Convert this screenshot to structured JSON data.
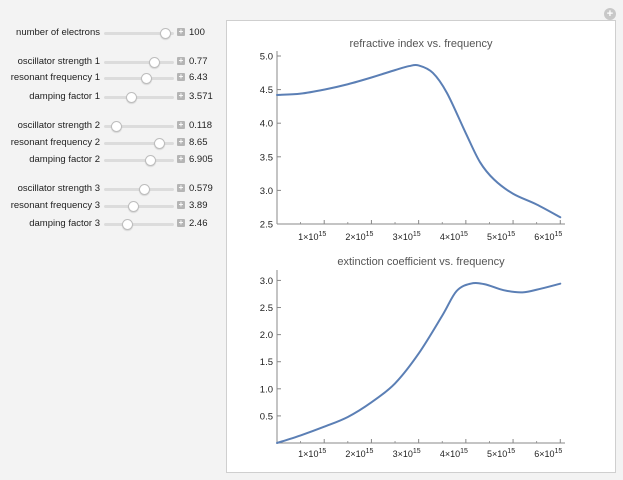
{
  "window": {
    "corner_button_label": "+"
  },
  "controls": [
    {
      "label": "number of electrons",
      "value": "100",
      "fraction": 0.9
    },
    {
      "label": "oscillator strength 1",
      "value": "0.77",
      "fraction": 0.72
    },
    {
      "label": "resonant frequency 1",
      "value": "6.43",
      "fraction": 0.6
    },
    {
      "label": "damping factor 1",
      "value": "3.571",
      "fraction": 0.36
    },
    {
      "label": "oscillator strength 2",
      "value": "0.118",
      "fraction": 0.12
    },
    {
      "label": "resonant frequency 2",
      "value": "8.65",
      "fraction": 0.8
    },
    {
      "label": "damping factor 2",
      "value": "6.905",
      "fraction": 0.66
    },
    {
      "label": "oscillator strength 3",
      "value": "0.579",
      "fraction": 0.56
    },
    {
      "label": "resonant frequency 3",
      "value": "3.89",
      "fraction": 0.39
    },
    {
      "label": "damping factor 3",
      "value": "2.46",
      "fraction": 0.29
    }
  ],
  "colors": {
    "curve": "#5b7fb5",
    "axis": "#888888",
    "plot_background": "#ffffff",
    "panel_background": "#f3f3f3"
  },
  "chart_data": [
    {
      "type": "line",
      "title": "refractive index vs. frequency",
      "xlabel": "",
      "ylabel": "",
      "x_tick_labels": [
        {
          "mant": "1×10",
          "exp": "15",
          "x": 1000000000000000.0
        },
        {
          "mant": "2×10",
          "exp": "15",
          "x": 2000000000000000.0
        },
        {
          "mant": "3×10",
          "exp": "15",
          "x": 3000000000000000.0
        },
        {
          "mant": "4×10",
          "exp": "15",
          "x": 4000000000000000.0
        },
        {
          "mant": "5×10",
          "exp": "15",
          "x": 5000000000000000.0
        },
        {
          "mant": "6×10",
          "exp": "15",
          "x": 6000000000000000.0
        }
      ],
      "y_tick_labels": [
        "2.5",
        "3.0",
        "3.5",
        "4.0",
        "4.5",
        "5.0"
      ],
      "xlim": [
        0,
        6100000000000000.0
      ],
      "ylim": [
        2.5,
        5.0
      ],
      "x": [
        0,
        500000000000000.0,
        1000000000000000.0,
        1500000000000000.0,
        2000000000000000.0,
        2500000000000000.0,
        2800000000000000.0,
        3000000000000000.0,
        3300000000000000.0,
        3600000000000000.0,
        4000000000000000.0,
        4300000000000000.0,
        4600000000000000.0,
        5000000000000000.0,
        5500000000000000.0,
        6000000000000000.0
      ],
      "y": [
        4.42,
        4.44,
        4.5,
        4.58,
        4.68,
        4.79,
        4.85,
        4.86,
        4.75,
        4.45,
        3.85,
        3.42,
        3.16,
        2.95,
        2.79,
        2.6
      ]
    },
    {
      "type": "line",
      "title": "extinction coefficient vs. frequency",
      "xlabel": "",
      "ylabel": "",
      "x_tick_labels": [
        {
          "mant": "1×10",
          "exp": "15",
          "x": 1000000000000000.0
        },
        {
          "mant": "2×10",
          "exp": "15",
          "x": 2000000000000000.0
        },
        {
          "mant": "3×10",
          "exp": "15",
          "x": 3000000000000000.0
        },
        {
          "mant": "4×10",
          "exp": "15",
          "x": 4000000000000000.0
        },
        {
          "mant": "5×10",
          "exp": "15",
          "x": 5000000000000000.0
        },
        {
          "mant": "6×10",
          "exp": "15",
          "x": 6000000000000000.0
        }
      ],
      "y_tick_labels": [
        "0.5",
        "1.0",
        "1.5",
        "2.0",
        "2.5",
        "3.0"
      ],
      "xlim": [
        0,
        6100000000000000.0
      ],
      "ylim": [
        0,
        3.1
      ],
      "x": [
        0,
        500000000000000.0,
        1000000000000000.0,
        1500000000000000.0,
        2000000000000000.0,
        2500000000000000.0,
        3000000000000000.0,
        3500000000000000.0,
        3800000000000000.0,
        4100000000000000.0,
        4400000000000000.0,
        4800000000000000.0,
        5200000000000000.0,
        5600000000000000.0,
        6000000000000000.0
      ],
      "y": [
        0,
        0.14,
        0.3,
        0.48,
        0.75,
        1.1,
        1.65,
        2.35,
        2.8,
        2.94,
        2.93,
        2.82,
        2.78,
        2.85,
        2.94
      ]
    }
  ]
}
